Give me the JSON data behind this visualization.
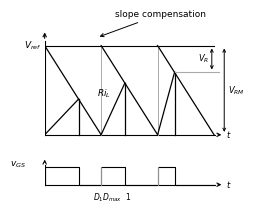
{
  "vref_label": "$V_{ref}$",
  "vos_label": "$v_{GS}$",
  "slope_label": "slope compensation",
  "ridl_label": "$Ri_L$",
  "vr_label": "$V_R$",
  "vrm_label": "$V_{RM}$",
  "bottom_label": "$D_1  D_{max}$  1",
  "bg_color": "#ffffff",
  "line_color": "#000000",
  "gray_color": "#aaaaaa",
  "t_starts": [
    0.0,
    1.0,
    2.0
  ],
  "t_ends": [
    1.0,
    2.0,
    3.0
  ],
  "ds": [
    0.6,
    0.42,
    0.3
  ],
  "vref": 1.0,
  "xlim": [
    0,
    3.3
  ],
  "ylim_upper": [
    -0.08,
    1.22
  ],
  "ylim_lower": [
    -0.5,
    1.8
  ]
}
